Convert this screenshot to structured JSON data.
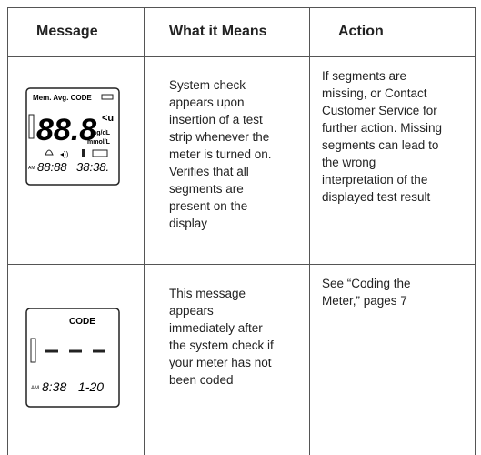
{
  "table": {
    "header": [
      "Message",
      "What it Means",
      "Action"
    ],
    "rows": [
      {
        "display": {
          "top": "Mem. Avg. CODE",
          "digits": "88.8",
          "unit1": "mg/dL",
          "unit2": "mmol/L",
          "ampm": "AM",
          "time": "88:88",
          "date": "38:38."
        },
        "meaning": [
          "System check",
          "appears upon",
          "insertion of a test",
          "strip whenever the",
          "meter is turned on.",
          "Verifies that all",
          "segments are",
          "present on the",
          "display"
        ],
        "action": [
          "If segments are",
          "missing, or Contact",
          "Customer Service for",
          "further action. Missing",
          "segments can lead to",
          "the wrong",
          "interpretation of the",
          "displayed test result"
        ]
      },
      {
        "display": {
          "top": "CODE",
          "ampm": "AM",
          "time": "8:38",
          "date": "1-20"
        },
        "meaning": [
          "This message",
          "appears",
          "immediately after",
          "the system check if",
          "your meter has not",
          "been coded"
        ],
        "action": [
          "See “Coding the",
          "Meter,” pages 7"
        ]
      }
    ]
  }
}
